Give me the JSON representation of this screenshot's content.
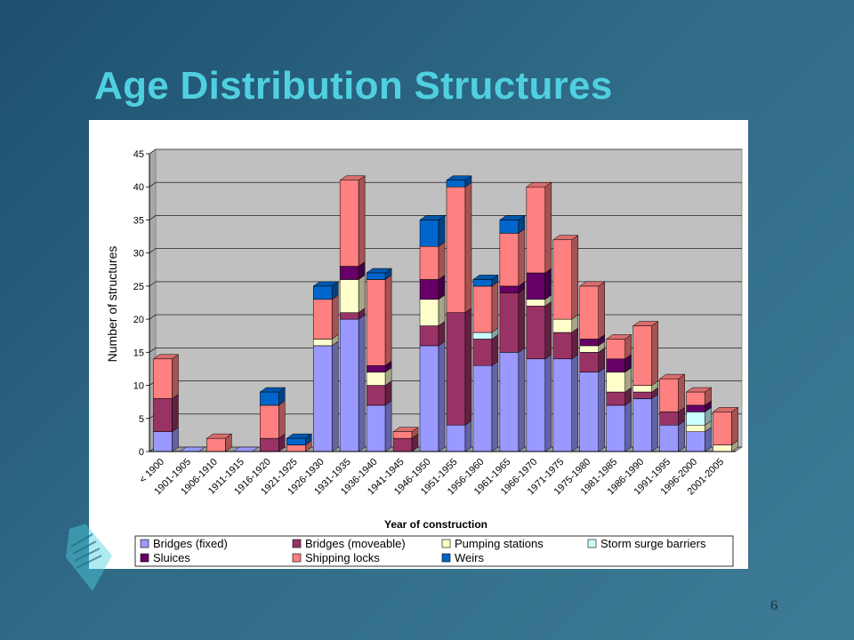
{
  "slide": {
    "title": "Age Distribution Structures",
    "page_number": "6"
  },
  "chart_data": {
    "type": "bar",
    "stacked": true,
    "three_d": true,
    "categories": [
      "< 1900",
      "1901-1905",
      "1906-1910",
      "1911-1915",
      "1916-1920",
      "1921-1925",
      "1926-1930",
      "1931-1935",
      "1936-1940",
      "1941-1945",
      "1946-1950",
      "1951-1955",
      "1956-1960",
      "1961-1965",
      "1966-1970",
      "1971-1975",
      "1975-1980",
      "1981-1985",
      "1986-1990",
      "1991-1995",
      "1996-2000",
      "2001-2005"
    ],
    "series": [
      {
        "name": "Bridges (fixed)",
        "color": "#9999ff",
        "values": [
          3,
          0,
          0,
          0,
          0,
          0,
          16,
          20,
          7,
          0,
          16,
          4,
          13,
          15,
          14,
          14,
          12,
          7,
          8,
          4,
          3,
          0
        ]
      },
      {
        "name": "Bridges (moveable)",
        "color": "#993366",
        "values": [
          5,
          0,
          0,
          0,
          2,
          0,
          0,
          1,
          3,
          2,
          3,
          17,
          4,
          9,
          8,
          4,
          3,
          2,
          1,
          2,
          0,
          0
        ]
      },
      {
        "name": "Pumping stations",
        "color": "#ffffcc",
        "values": [
          0,
          0,
          0,
          0,
          0,
          0,
          1,
          5,
          2,
          0,
          4,
          0,
          0,
          0,
          1,
          2,
          1,
          3,
          1,
          0,
          1,
          1
        ]
      },
      {
        "name": "Storm surge barriers",
        "color": "#ccffff",
        "values": [
          0,
          0,
          0,
          0,
          0,
          0,
          0,
          0,
          0,
          0,
          0,
          0,
          1,
          0,
          0,
          0,
          0,
          0,
          0,
          0,
          2,
          0
        ]
      },
      {
        "name": "Sluices",
        "color": "#660066",
        "values": [
          0,
          0,
          0,
          0,
          0,
          0,
          0,
          2,
          1,
          0,
          3,
          0,
          0,
          1,
          4,
          0,
          1,
          2,
          0,
          0,
          1,
          0
        ]
      },
      {
        "name": "Shipping locks",
        "color": "#ff8080",
        "values": [
          6,
          0,
          2,
          0,
          5,
          1,
          6,
          13,
          13,
          1,
          5,
          19,
          7,
          8,
          13,
          12,
          8,
          3,
          9,
          5,
          2,
          5
        ]
      },
      {
        "name": "Weirs",
        "color": "#0066cc",
        "values": [
          0,
          0,
          0,
          0,
          2,
          1,
          2,
          0,
          1,
          0,
          4,
          1,
          1,
          2,
          0,
          0,
          0,
          0,
          0,
          0,
          0,
          0
        ]
      }
    ],
    "xlabel": "Year of construction",
    "ylabel": "Number of structures",
    "ylim": [
      0,
      45
    ],
    "yticks": [
      0,
      5,
      10,
      15,
      20,
      25,
      30,
      35,
      40,
      45
    ],
    "grid": true,
    "legend_position": "bottom"
  }
}
